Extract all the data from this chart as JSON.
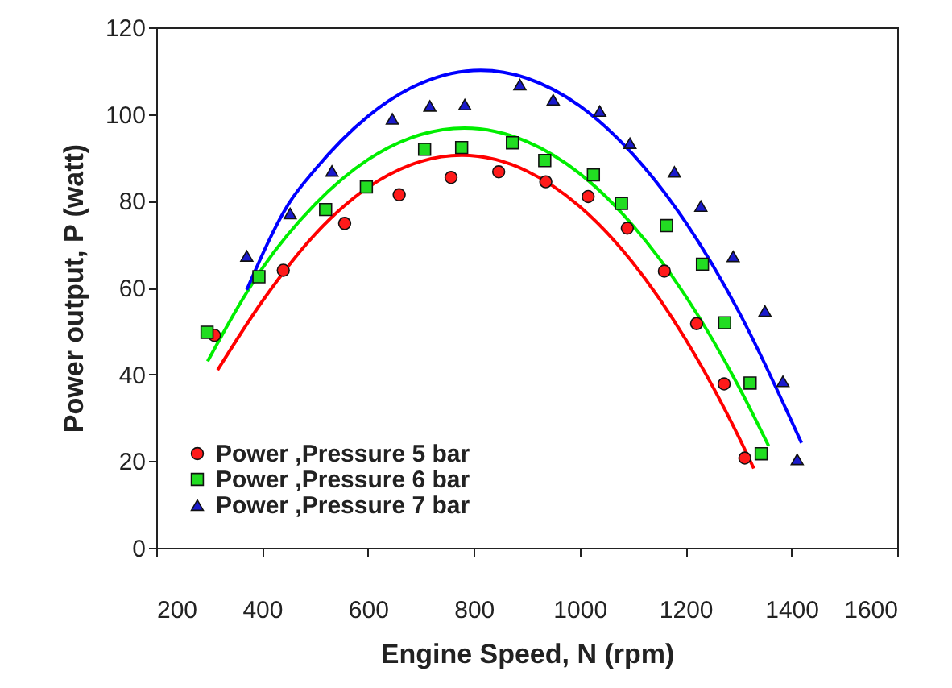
{
  "chart_data": {
    "type": "scatter",
    "xlabel": "Engine Speed, N (rpm)",
    "ylabel": "Power output, P (watt)",
    "xlim": [
      200,
      1600
    ],
    "xticks": [
      200,
      400,
      600,
      800,
      1000,
      1200,
      1400,
      1600
    ],
    "ylim": [
      0,
      120
    ],
    "yticks": [
      0,
      20,
      40,
      60,
      80,
      100,
      120
    ],
    "grid": false,
    "legend": "bottom left",
    "series": [
      {
        "name": "Power ,Pressure 5 bar",
        "marker": "circle",
        "color": "#ff1a1a",
        "x": [
          310,
          440,
          556,
          659,
          757,
          847,
          936,
          1016,
          1090,
          1160,
          1221,
          1273,
          1312
        ],
        "values": [
          49,
          64,
          74.8,
          81.4,
          85.4,
          86.7,
          84.4,
          81,
          73.7,
          63.8,
          51.7,
          37.8,
          20.7
        ]
      },
      {
        "name": "Power ,Pressure 6 bar",
        "marker": "square",
        "color": "#22dd22",
        "x": [
          296,
          394,
          520,
          597,
          707,
          777,
          873,
          934,
          1026,
          1079,
          1164,
          1232,
          1274,
          1322,
          1343
        ],
        "values": [
          49.7,
          62.5,
          78,
          83.2,
          91.9,
          92.3,
          93.4,
          89.3,
          86,
          79.4,
          74.3,
          65.4,
          51.9,
          38,
          21.7
        ]
      },
      {
        "name": "Power ,Pressure 7 bar",
        "marker": "triangle",
        "color": "#1a1acc",
        "x": [
          371,
          453,
          532,
          646,
          717,
          783,
          887,
          950,
          1038,
          1095,
          1179,
          1229,
          1290,
          1350,
          1384,
          1411
        ],
        "values": [
          67.3,
          77.1,
          86.9,
          98.9,
          101.9,
          102.2,
          106.8,
          103.3,
          100.7,
          93.3,
          86.7,
          78.8,
          67.2,
          54.6,
          38.4,
          20.4
        ]
      },
      {
        "type": "line",
        "marker": "none",
        "color": "#ff0000",
        "x": [
          316,
          400,
          500,
          600,
          700,
          777,
          900,
          1000,
          1100,
          1200,
          1300,
          1329
        ],
        "values": [
          41,
          56.8,
          72.3,
          83.1,
          89.1,
          90.5,
          86.9,
          78.7,
          65.8,
          48.1,
          25.7,
          18.3
        ]
      },
      {
        "type": "line",
        "marker": "none",
        "color": "#00ee00",
        "x": [
          297,
          400,
          500,
          600,
          700,
          782,
          900,
          1000,
          1100,
          1200,
          1300,
          1357
        ],
        "values": [
          43,
          64.4,
          79.2,
          89.5,
          95.3,
          96.8,
          93.7,
          86.3,
          74.4,
          58.1,
          37.3,
          23.5
        ]
      },
      {
        "type": "line",
        "marker": "none",
        "color": "#0000ff",
        "x": [
          371,
          450,
          500,
          600,
          700,
          813,
          900,
          1000,
          1100,
          1200,
          1300,
          1419
        ],
        "values": [
          59.5,
          79.3,
          87.2,
          99.5,
          107.1,
          110.1,
          108.3,
          101.9,
          90.8,
          75.1,
          54.6,
          24.2
        ]
      }
    ]
  }
}
